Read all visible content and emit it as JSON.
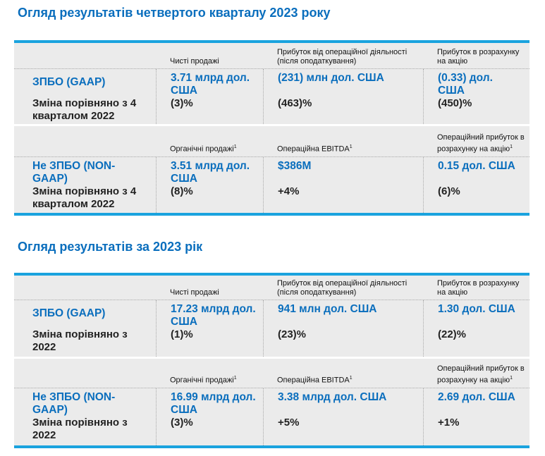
{
  "sections": [
    {
      "title": "Огляд результатів четвертого кварталу 2023 року",
      "gaap": {
        "headers": [
          "Чисті продажі",
          "Прибуток від операційної діяльності (після оподаткування)",
          "Прибуток в розрахунку на акцію"
        ],
        "label": "ЗПБО (GAAP)",
        "change_label": "Зміна порівняно з 4 кварталом 2022",
        "values": [
          "3.71 млрд дол. США",
          "(231) млн дол. США",
          "(0.33) дол. США"
        ],
        "changes": [
          "(3)%",
          "(463)%",
          "(450)%"
        ]
      },
      "nongaap": {
        "headers": [
          "Органічні продажі",
          "Операційна EBITDA",
          "Операційний прибуток в розрахунку на акцію"
        ],
        "footnote": "1",
        "label": "Не ЗПБО (NON-GAAP)",
        "change_label": "Зміна порівняно з 4 кварталом 2022",
        "values": [
          "3.51 млрд дол. США",
          "$386M",
          "0.15 дол. США"
        ],
        "changes": [
          "(8)%",
          "+4%",
          "(6)%"
        ]
      }
    },
    {
      "title": "Огляд результатів за 2023 рік",
      "gaap": {
        "headers": [
          "Чисті продажі",
          "Прибуток від операційної діяльності (після оподаткування)",
          "Прибуток в розрахунку на акцію"
        ],
        "label": "ЗПБО (GAAP)",
        "change_label": "Зміна порівняно з 2022",
        "values": [
          "17.23 млрд дол. США",
          "941 млн дол. США",
          "1.30 дол. США"
        ],
        "changes": [
          "(1)%",
          "(23)%",
          "(22)%"
        ]
      },
      "nongaap": {
        "headers": [
          "Органічні продажі",
          "Операційна EBITDA",
          "Операційний прибуток в розрахунку на акцію"
        ],
        "footnote": "1",
        "label": "Не ЗПБО (NON-GAAP)",
        "change_label": "Зміна порівняно з 2022",
        "values": [
          "16.99 млрд дол. США",
          "3.38 млрд дол. США",
          "2.69 дол. США"
        ],
        "changes": [
          "(3)%",
          "+5%",
          "+1%"
        ]
      }
    }
  ],
  "colors": {
    "accent": "#0a6ebd",
    "border": "#1aa3de",
    "background": "#ebebeb"
  }
}
